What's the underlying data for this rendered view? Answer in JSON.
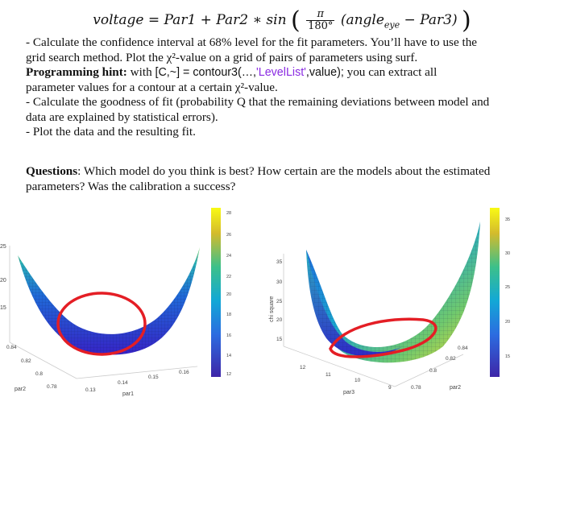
{
  "equation": {
    "lhs": "voltage = Par1 + Par2 ∗ sin",
    "frac_num": "π",
    "frac_den": "180°",
    "angle": "angle",
    "angle_sub": "eye",
    "tail": " − Par3"
  },
  "lines": {
    "l1": "- Calculate the confidence interval at 68% level for the fit parameters. You’ll have to use the",
    "l2": "grid search method. Plot the χ²-value on a grid of pairs of parameters using surf.",
    "hint_label": "Programming hint:",
    "hint_with": " with ",
    "hint_code1": "[C,~] = contour3(…,",
    "hint_code_str": "'LevelList'",
    "hint_code2": ",value);",
    "hint_rest": " you can extract all",
    "l4": "parameter values for a contour at a certain χ²-value.",
    "l5": "- Calculate the goodness of fit (probability Q that the remaining deviations between model and",
    "l6": "data are explained by statistical errors).",
    "l7": "- Plot the data and the resulting fit."
  },
  "questions": {
    "label": "Questions",
    "text1": ": Which model do you think is best? How certain are the models about the estimated",
    "text2": "parameters? Was the calibration a success?"
  },
  "left_plot": {
    "z_ticks": [
      "25",
      "20",
      "15"
    ],
    "par2_ticks": [
      "0.84",
      "0.82",
      "0.8",
      "0.78"
    ],
    "par2_label": "par2",
    "par1_ticks": [
      "0.13",
      "0.14",
      "0.15",
      "0.16"
    ],
    "par1_label": "par1",
    "colorbar_ticks": [
      "28",
      "26",
      "24",
      "22",
      "20",
      "18",
      "16",
      "14",
      "12"
    ]
  },
  "right_plot": {
    "z_label": "chi square",
    "z_ticks": [
      "35",
      "30",
      "25",
      "20",
      "15"
    ],
    "par3_ticks": [
      "12",
      "11",
      "10",
      "9"
    ],
    "par3_label": "par3",
    "par2_ticks": [
      "0.84",
      "0.82",
      "0.8",
      "0.78"
    ],
    "par2_label": "par2",
    "colorbar_ticks": [
      "35",
      "30",
      "25",
      "20",
      "15"
    ]
  },
  "colors": {
    "surface_low": "#3a2ad1",
    "surface_mid": "#21a0c8",
    "surface_high": "#f5e11f",
    "contour": "#e41e25"
  }
}
